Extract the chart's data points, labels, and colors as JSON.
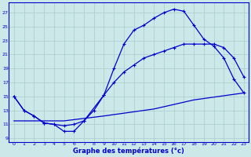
{
  "bg_color": "#cce8e8",
  "grid_color": "#aacccc",
  "line_color": "#0000cc",
  "xlabel": "Graphe des températures (°c)",
  "ylim": [
    8.5,
    28.5
  ],
  "xlim": [
    -0.5,
    23.5
  ],
  "yticks": [
    9,
    11,
    13,
    15,
    17,
    19,
    21,
    23,
    25,
    27
  ],
  "xticks": [
    0,
    1,
    2,
    3,
    4,
    5,
    6,
    7,
    8,
    9,
    10,
    11,
    12,
    13,
    14,
    15,
    16,
    17,
    18,
    19,
    20,
    21,
    22,
    23
  ],
  "line1_x": [
    0,
    1,
    2,
    3,
    4,
    5,
    6,
    7,
    9,
    10,
    11,
    12,
    13,
    14,
    15,
    16,
    17,
    18,
    19,
    20,
    21,
    22,
    23
  ],
  "line1_y": [
    15.0,
    13.0,
    12.2,
    11.2,
    11.0,
    10.0,
    10.0,
    11.5,
    15.2,
    19.0,
    22.5,
    24.5,
    25.2,
    26.2,
    27.0,
    27.5,
    27.2,
    25.2,
    23.2,
    22.2,
    20.5,
    17.5,
    15.5
  ],
  "line2_x": [
    0,
    1,
    2,
    3,
    4,
    5,
    6,
    7,
    8,
    9,
    10,
    11,
    12,
    13,
    14,
    15,
    16,
    17,
    18,
    19,
    20,
    21,
    22,
    23
  ],
  "line2_y": [
    15.0,
    13.0,
    12.2,
    11.2,
    11.0,
    10.8,
    11.0,
    11.5,
    13.0,
    15.2,
    17.0,
    18.5,
    19.5,
    20.5,
    21.0,
    21.5,
    22.0,
    22.5,
    22.5,
    22.5,
    22.5,
    22.0,
    20.5,
    17.8
  ],
  "line3_x": [
    0,
    2,
    5,
    9,
    14,
    18,
    23
  ],
  "line3_y": [
    11.5,
    11.5,
    11.5,
    12.2,
    13.2,
    14.5,
    15.5
  ]
}
